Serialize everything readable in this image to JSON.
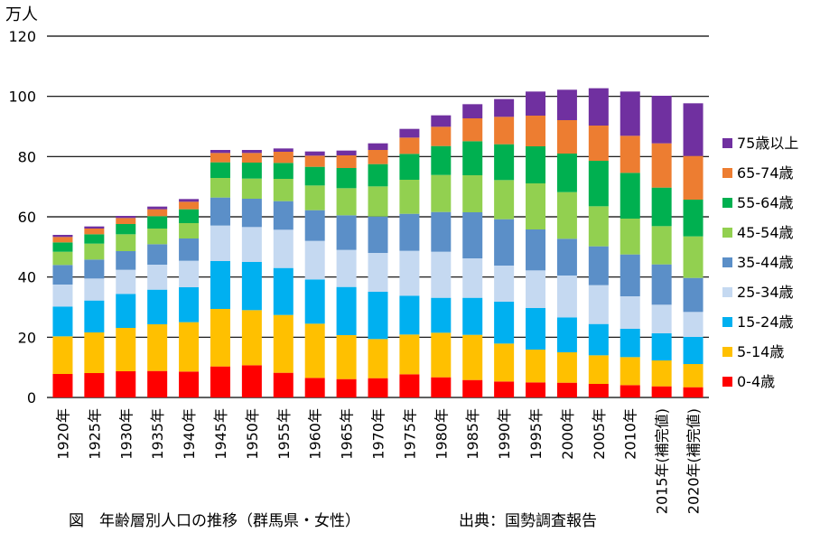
{
  "chart_data": {
    "type": "bar",
    "stacked": true,
    "y_unit": "万人",
    "ylim": [
      0,
      120
    ],
    "yticks": [
      0,
      20,
      40,
      60,
      80,
      100,
      120
    ],
    "grid": true,
    "legend_position": "right",
    "categories": [
      "1920年",
      "1925年",
      "1930年",
      "1935年",
      "1940年",
      "1945年",
      "1950年",
      "1955年",
      "1960年",
      "1965年",
      "1970年",
      "1975年",
      "1980年",
      "1985年",
      "1990年",
      "1995年",
      "2000年",
      "2005年",
      "2010年",
      "2015年(補完値)",
      "2020年(補完値)"
    ],
    "series": [
      {
        "name": "0-4歳",
        "color": "#ff0000",
        "values": [
          7.8,
          8.1,
          8.7,
          8.8,
          8.6,
          10.3,
          10.7,
          8.2,
          6.5,
          6.1,
          6.4,
          7.7,
          6.7,
          5.8,
          5.3,
          5.0,
          4.9,
          4.5,
          4.1,
          3.7,
          3.4
        ]
      },
      {
        "name": "5-14歳",
        "color": "#ffc000",
        "values": [
          12.5,
          13.5,
          14.4,
          15.5,
          16.4,
          19.1,
          18.3,
          19.2,
          18.0,
          14.6,
          13.0,
          13.2,
          14.8,
          15.0,
          12.6,
          10.9,
          10.1,
          9.5,
          9.3,
          8.6,
          7.7
        ]
      },
      {
        "name": "15-24歳",
        "color": "#00b0f0",
        "values": [
          9.9,
          10.6,
          11.3,
          11.5,
          11.6,
          15.9,
          16.0,
          15.6,
          14.7,
          16.0,
          15.7,
          12.9,
          11.6,
          12.3,
          13.9,
          13.8,
          11.6,
          10.4,
          9.4,
          9.0,
          9.0
        ]
      },
      {
        "name": "25-34歳",
        "color": "#c5d9f1",
        "values": [
          7.3,
          7.3,
          8.0,
          8.3,
          8.8,
          11.8,
          11.6,
          12.7,
          12.8,
          12.3,
          12.9,
          14.9,
          15.3,
          13.1,
          12.0,
          12.5,
          13.9,
          12.9,
          10.8,
          9.5,
          8.3
        ]
      },
      {
        "name": "35-44歳",
        "color": "#5b8fc8",
        "values": [
          6.5,
          6.3,
          6.2,
          6.8,
          7.4,
          9.3,
          9.4,
          9.5,
          10.2,
          11.5,
          12.1,
          12.3,
          13.2,
          15.3,
          15.4,
          13.6,
          12.2,
          12.9,
          13.9,
          13.4,
          11.3
        ]
      },
      {
        "name": "45-54歳",
        "color": "#92d050",
        "values": [
          4.4,
          5.3,
          5.6,
          5.2,
          5.1,
          6.5,
          6.7,
          7.4,
          8.2,
          9.0,
          10.0,
          11.3,
          12.3,
          12.3,
          13.0,
          15.3,
          15.5,
          13.3,
          11.9,
          12.7,
          13.8
        ]
      },
      {
        "name": "55-64歳",
        "color": "#00b050",
        "values": [
          3.1,
          3.1,
          3.4,
          4.1,
          4.6,
          5.2,
          5.3,
          5.3,
          6.2,
          6.7,
          7.4,
          8.6,
          9.6,
          11.3,
          11.9,
          12.3,
          12.8,
          15.1,
          15.2,
          12.8,
          12.2
        ]
      },
      {
        "name": "65-74歳",
        "color": "#ed7d31",
        "values": [
          1.8,
          1.9,
          2.0,
          2.3,
          2.5,
          3.1,
          3.2,
          3.7,
          3.7,
          4.2,
          4.7,
          5.4,
          6.4,
          7.6,
          9.1,
          10.2,
          11.1,
          11.7,
          12.3,
          14.7,
          14.5
        ]
      },
      {
        "name": "75歳以上",
        "color": "#7030a0",
        "values": [
          0.7,
          0.7,
          0.7,
          0.9,
          0.9,
          1.0,
          1.0,
          1.1,
          1.4,
          1.6,
          2.2,
          2.9,
          3.8,
          4.7,
          5.9,
          8.0,
          10.1,
          12.4,
          14.7,
          15.8,
          17.5
        ]
      }
    ]
  },
  "caption": {
    "title": "図　年齢層別人口の推移（群馬県・女性）",
    "source": "出典：国勢調査報告"
  }
}
